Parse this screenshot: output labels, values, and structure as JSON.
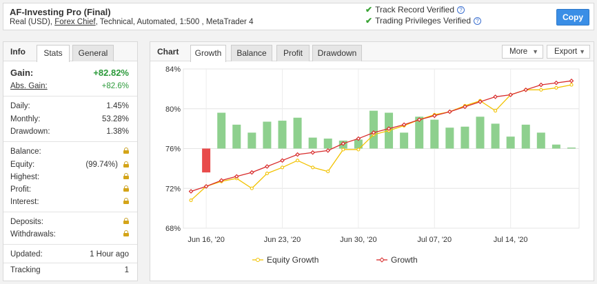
{
  "header": {
    "title": "AF-Investing Pro (Final)",
    "subtitle_pre": "Real (USD), ",
    "subtitle_link": "Forex Chief",
    "subtitle_post": ", Technical, Automated, 1:500 , MetaTrader 4",
    "verified_1": "Track Record Verified",
    "verified_2": "Trading Privileges Verified",
    "copy": "Copy"
  },
  "left": {
    "tab_title": "Info",
    "tabs": [
      "Stats",
      "General"
    ],
    "gain_label": "Gain:",
    "gain_value": "+82.82%",
    "abs_gain_label": "Abs. Gain:",
    "abs_gain_value": "+82.6%",
    "daily_label": "Daily:",
    "daily_value": "1.45%",
    "monthly_label": "Monthly:",
    "monthly_value": "53.28%",
    "drawdown_label": "Drawdown:",
    "drawdown_value": "1.38%",
    "balance_label": "Balance:",
    "equity_label": "Equity:",
    "equity_value": "(99.74%)",
    "highest_label": "Highest:",
    "profit_label": "Profit:",
    "interest_label": "Interest:",
    "deposits_label": "Deposits:",
    "withdrawals_label": "Withdrawals:",
    "updated_label": "Updated:",
    "updated_value": "1 Hour ago",
    "tracking_label": "Tracking",
    "tracking_value": "1"
  },
  "chart_panel": {
    "title": "Chart",
    "tabs": [
      "Growth",
      "Balance",
      "Profit",
      "Drawdown"
    ],
    "more": "More",
    "export": "Export"
  },
  "chart_data": {
    "type": "line",
    "y_ticks": [
      "84%",
      "80%",
      "76%",
      "72%",
      "68%"
    ],
    "ylim": [
      68,
      84
    ],
    "x_tick_labels": [
      "Jun 16, '20",
      "Jun 23, '20",
      "Jun 30, '20",
      "Jul 07, '20",
      "Jul 14, '20"
    ],
    "x_tick_index": [
      1,
      6,
      11,
      16,
      21
    ],
    "legend": [
      "Equity Growth",
      "Growth"
    ],
    "colors": {
      "equity": "#f2c200",
      "growth": "#d82b2b",
      "bar_pos": "#8ed08e",
      "bar_neg": "#e84b4b"
    },
    "series": [
      {
        "name": "Equity Growth",
        "values": [
          70.8,
          72.2,
          72.7,
          73.0,
          72.0,
          73.5,
          74.1,
          74.8,
          74.1,
          73.7,
          75.9,
          75.9,
          77.4,
          77.8,
          78.3,
          78.9,
          79.4,
          79.7,
          80.3,
          80.8,
          79.8,
          81.4,
          81.9,
          81.9,
          82.1,
          82.4
        ]
      },
      {
        "name": "Growth",
        "values": [
          71.7,
          72.2,
          72.8,
          73.2,
          73.6,
          74.2,
          74.8,
          75.4,
          75.6,
          75.8,
          76.5,
          77.0,
          77.6,
          78.0,
          78.4,
          78.9,
          79.3,
          79.7,
          80.2,
          80.7,
          81.2,
          81.4,
          81.9,
          82.4,
          82.6,
          82.8
        ]
      }
    ],
    "bars": [
      null,
      -2.4,
      3.6,
      2.4,
      1.6,
      2.7,
      2.8,
      3.1,
      1.1,
      1.0,
      0.8,
      0.9,
      3.8,
      3.6,
      1.6,
      3.2,
      2.9,
      2.1,
      2.2,
      3.2,
      2.5,
      1.2,
      2.4,
      1.6,
      0.4,
      0.1
    ]
  }
}
